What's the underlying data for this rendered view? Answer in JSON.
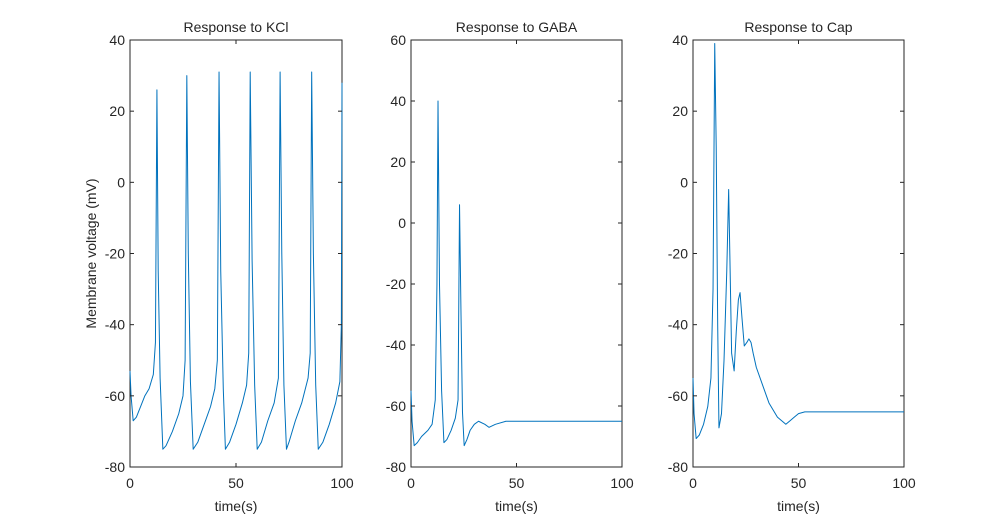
{
  "chart_data": [
    {
      "type": "line",
      "title": "Response to KCl",
      "xlabel": "time(s)",
      "ylabel": "Membrane voltage (mV)",
      "xlim": [
        0,
        100
      ],
      "ylim": [
        -80,
        40
      ],
      "xticks": [
        0,
        50,
        100
      ],
      "yticks": [
        -80,
        -60,
        -40,
        -20,
        0,
        20,
        40
      ],
      "grid": false,
      "color": "#0072BD",
      "series": [
        {
          "x": [
            0,
            0.5,
            1.5,
            3,
            5,
            7,
            9,
            11,
            12,
            12.7,
            13.3,
            14.2,
            15.5,
            17,
            20,
            23,
            25,
            26,
            26.8,
            27.5,
            28.5,
            29.8,
            32,
            35,
            38,
            40,
            41.2,
            42,
            42.8,
            44,
            45,
            47,
            50,
            53,
            55,
            56,
            56.7,
            57.6,
            58.8,
            60,
            62,
            65,
            68,
            70,
            70.8,
            71.6,
            72.6,
            73.8,
            75,
            78,
            81,
            84,
            85,
            85.7,
            86.5,
            87.6,
            88.8,
            91,
            94,
            97,
            99,
            99.7,
            100
          ],
          "y": [
            -53,
            -60,
            -67,
            -66,
            -63,
            -60,
            -58,
            -54,
            -45,
            26,
            -25,
            -55,
            -75,
            -74,
            -70,
            -65,
            -60,
            -50,
            30,
            -20,
            -56,
            -75,
            -73,
            -68,
            -63,
            -58,
            -50,
            31,
            -25,
            -58,
            -75,
            -73,
            -68,
            -62,
            -57,
            -48,
            31,
            -22,
            -57,
            -75,
            -73,
            -67,
            -62,
            -55,
            31,
            -20,
            -57,
            -75,
            -73,
            -67,
            -62,
            -55,
            -48,
            31,
            -20,
            -57,
            -75,
            -73,
            -68,
            -62,
            -56,
            -40,
            28
          ]
        }
      ]
    },
    {
      "type": "line",
      "title": "Response to GABA",
      "xlabel": "time(s)",
      "ylabel": "",
      "xlim": [
        0,
        100
      ],
      "ylim": [
        -80,
        60
      ],
      "xticks": [
        0,
        50,
        100
      ],
      "yticks": [
        -80,
        -60,
        -40,
        -20,
        0,
        20,
        40,
        60
      ],
      "grid": false,
      "color": "#0072BD",
      "series": [
        {
          "x": [
            0,
            0.5,
            1.5,
            3,
            5,
            8,
            10,
            11.5,
            12.3,
            12.8,
            13.5,
            14.5,
            15.6,
            17,
            19,
            21,
            22.3,
            23,
            23.7,
            24.4,
            25.2,
            26.5,
            28,
            30,
            32,
            35,
            37,
            40,
            45,
            50,
            60,
            70,
            80,
            90,
            100
          ],
          "y": [
            -55,
            -65,
            -73,
            -72,
            -70,
            -68,
            -66,
            -58,
            -20,
            40,
            -20,
            -55,
            -72,
            -71,
            -68,
            -64,
            -58,
            6,
            -30,
            -62,
            -73,
            -71,
            -68,
            -66,
            -65,
            -66,
            -67,
            -66,
            -65,
            -65,
            -65,
            -65,
            -65,
            -65,
            -65
          ]
        }
      ]
    },
    {
      "type": "line",
      "title": "Response to Cap",
      "xlabel": "time(s)",
      "ylabel": "",
      "xlim": [
        0,
        100
      ],
      "ylim": [
        -80,
        40
      ],
      "xticks": [
        0,
        50,
        100
      ],
      "yticks": [
        -80,
        -60,
        -40,
        -20,
        0,
        20,
        40
      ],
      "grid": false,
      "color": "#0072BD",
      "series": [
        {
          "x": [
            0,
            0.5,
            1.5,
            3,
            5,
            7,
            8.5,
            9.5,
            10.3,
            11,
            11.7,
            12.3,
            13.5,
            14.7,
            16,
            16.9,
            17.6,
            18.3,
            19.5,
            20.5,
            21.5,
            22.3,
            23.2,
            24.3,
            25.5,
            26.5,
            27.5,
            28.5,
            30,
            33,
            36,
            40,
            44,
            46,
            48,
            50,
            53,
            56,
            60,
            70,
            80,
            90,
            100
          ],
          "y": [
            -55,
            -65,
            -72,
            -71,
            -68,
            -63,
            -55,
            -30,
            39,
            10,
            -40,
            -69,
            -65,
            -50,
            -25,
            -2,
            -25,
            -48,
            -53,
            -42,
            -33,
            -31,
            -38,
            -46,
            -45,
            -44,
            -45,
            -48,
            -52,
            -57,
            -62,
            -66,
            -68,
            -67,
            -66,
            -65,
            -64.5,
            -64.5,
            -64.5,
            -64.5,
            -64.5,
            -64.5,
            -64.5
          ]
        }
      ]
    }
  ]
}
